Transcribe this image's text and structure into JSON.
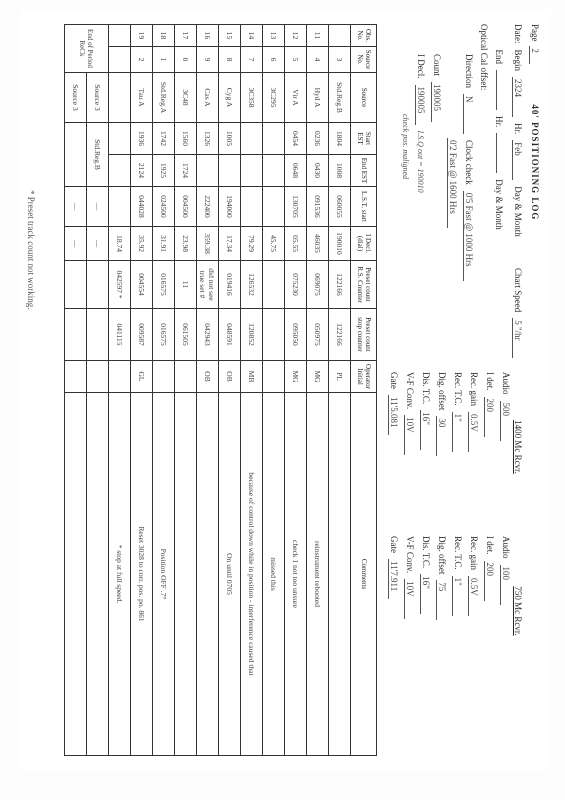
{
  "page_label": "Page",
  "page_no": "2",
  "title": "40' POSITIONING LOG",
  "date_label": "Date:",
  "begin_label": "Begin",
  "end_label": "End",
  "hr_label": "Hr.",
  "day_month_label": "Day & Month",
  "begin_hr": "2324",
  "begin_dm": "Feb",
  "end_hr": "",
  "end_dm": "",
  "chart_speed_label": "Chart Speed",
  "chart_speed": "5 \"/hr",
  "optical_label": "Optical Cal offset:",
  "direction_label": "Direction",
  "direction": "N",
  "clock_label": "Clock check",
  "clock_val": "0'5 Fast @ 1000 Hrs",
  "clock_val2": "0'2 Fast @ 1600 Hrs",
  "count_label": "Count",
  "count": "190005",
  "idecl_label": "I Decl.",
  "idecl": "190005",
  "side_note": "I.S.Q out = 190010",
  "side_note2": "check pos. maligned",
  "rcvr1400": {
    "title": "1400 Mc Rcvr.",
    "audio_label": "Audio",
    "audio": "500",
    "idet_label": "I det.",
    "idet": "200",
    "recgain_label": "Rec. gain",
    "recgain": "0.5V",
    "rectc_label": "Rec. T.C.",
    "rectc": "1\"",
    "digoff_label": "Dig. offset",
    "digoff": "30",
    "distc_label": "Dis. T.C.",
    "distc": "16\"",
    "vfconv_label": "V-F Conv.",
    "vfconv": "10V",
    "gate_label": "Gate",
    "gate": "11'5.081"
  },
  "rcvr750": {
    "title": "750 Mc Rcvr.",
    "audio": "100",
    "idet": "200",
    "recgain": "0.5V",
    "rectc": "1\"",
    "digoff": "75",
    "distc": "16\"",
    "vfconv": "10V",
    "gate": "11'7.911"
  },
  "columns": {
    "obs": "Obs. No.",
    "srcno": "Source No.",
    "src": "Source",
    "start": "Start EST",
    "end": "End EST",
    "lst": "L.S.T. start",
    "idecl": "I Decl. (dial)",
    "preset": "Preset count R.S. Counter",
    "stop": "Preset count stop counter",
    "op": "Operator Initial",
    "com": "Comments"
  },
  "rows": [
    {
      "obs": "",
      "srcno": "3",
      "src": "Std.Reg.B",
      "start": "1804",
      "end": "1008",
      "lst": "060055",
      "idecl": "190010",
      "pre": "122166",
      "stop": "122166",
      "op": "PL",
      "com": ""
    },
    {
      "obs": "11",
      "srcno": "4",
      "src": "Hyd A",
      "start": "0236",
      "end": "0430",
      "lst": "091536",
      "idecl": "46035",
      "pre": "069075",
      "stop": "050975",
      "op": "MG",
      "com": "reinstrument rebooted"
    },
    {
      "obs": "12",
      "srcno": "5",
      "src": "Vir A",
      "start": "0454",
      "end": "0648",
      "lst": "130705",
      "idecl": "05.55",
      "pre": "075230",
      "stop": "095050",
      "op": "MG",
      "com": "check 1 not too unsure"
    },
    {
      "obs": "13",
      "srcno": "6",
      "src": "3C295",
      "start": "",
      "end": "",
      "lst": "",
      "idecl": "45.75",
      "pre": "",
      "stop": "",
      "op": "",
      "com": "missed this"
    },
    {
      "obs": "14",
      "srcno": "7",
      "src": "3C358",
      "start": "",
      "end": "",
      "lst": "",
      "idecl": "79.29",
      "pre": "126532",
      "stop": "120852",
      "op": "MB",
      "com": "because of control down while in position - interference caused that"
    },
    {
      "obs": "15",
      "srcno": "8",
      "src": "Cyg A",
      "start": "1005",
      "end": "",
      "lst": "194000",
      "idecl": "17.34",
      "pre": "019416",
      "stop": "048591",
      "op": "OB",
      "com": "On until 0705"
    },
    {
      "obs": "16",
      "srcno": "9",
      "src": "Cas A",
      "start": "1326",
      "end": "",
      "lst": "222400",
      "idecl": "359.38",
      "pre": "did not see true set #",
      "stop": "042943",
      "op": "OB",
      "com": ""
    },
    {
      "obs": "17",
      "srcno": "0",
      "src": "3C48",
      "start": "1560",
      "end": "1724",
      "lst": "004500",
      "idecl": "23.98",
      "pre": "11",
      "stop": "061505",
      "op": "",
      "com": ""
    },
    {
      "obs": "18",
      "srcno": "1",
      "src": "Std.Reg.A",
      "start": "1742",
      "end": "1925",
      "lst": "024500",
      "idecl": "31.91",
      "pre": "016575",
      "stop": "016575",
      "op": "",
      "com": "Position OFF .7°"
    },
    {
      "obs": "19",
      "srcno": "2",
      "src": "Tau A",
      "start": "1936",
      "end": "2124",
      "lst": "044028",
      "idecl": "35.92",
      "pre": "004554",
      "stop": "009587",
      "op": "GL",
      "com": "Reset 3028 to corr. pos. po. 861"
    },
    {
      "obs": "",
      "srcno": "",
      "src": "",
      "start": "",
      "end": "",
      "lst": "",
      "idecl": "18.74",
      "pre": "042597 *",
      "stop": "041115",
      "op": "",
      "com": "* stop at full speed."
    }
  ],
  "end_rows": {
    "eop_label": "End of Period ReCk",
    "s3a": "Source 3",
    "s3a_src": "Std.Reg.B",
    "s3b": "Source 3"
  },
  "footnote": "* Preset track count not working."
}
